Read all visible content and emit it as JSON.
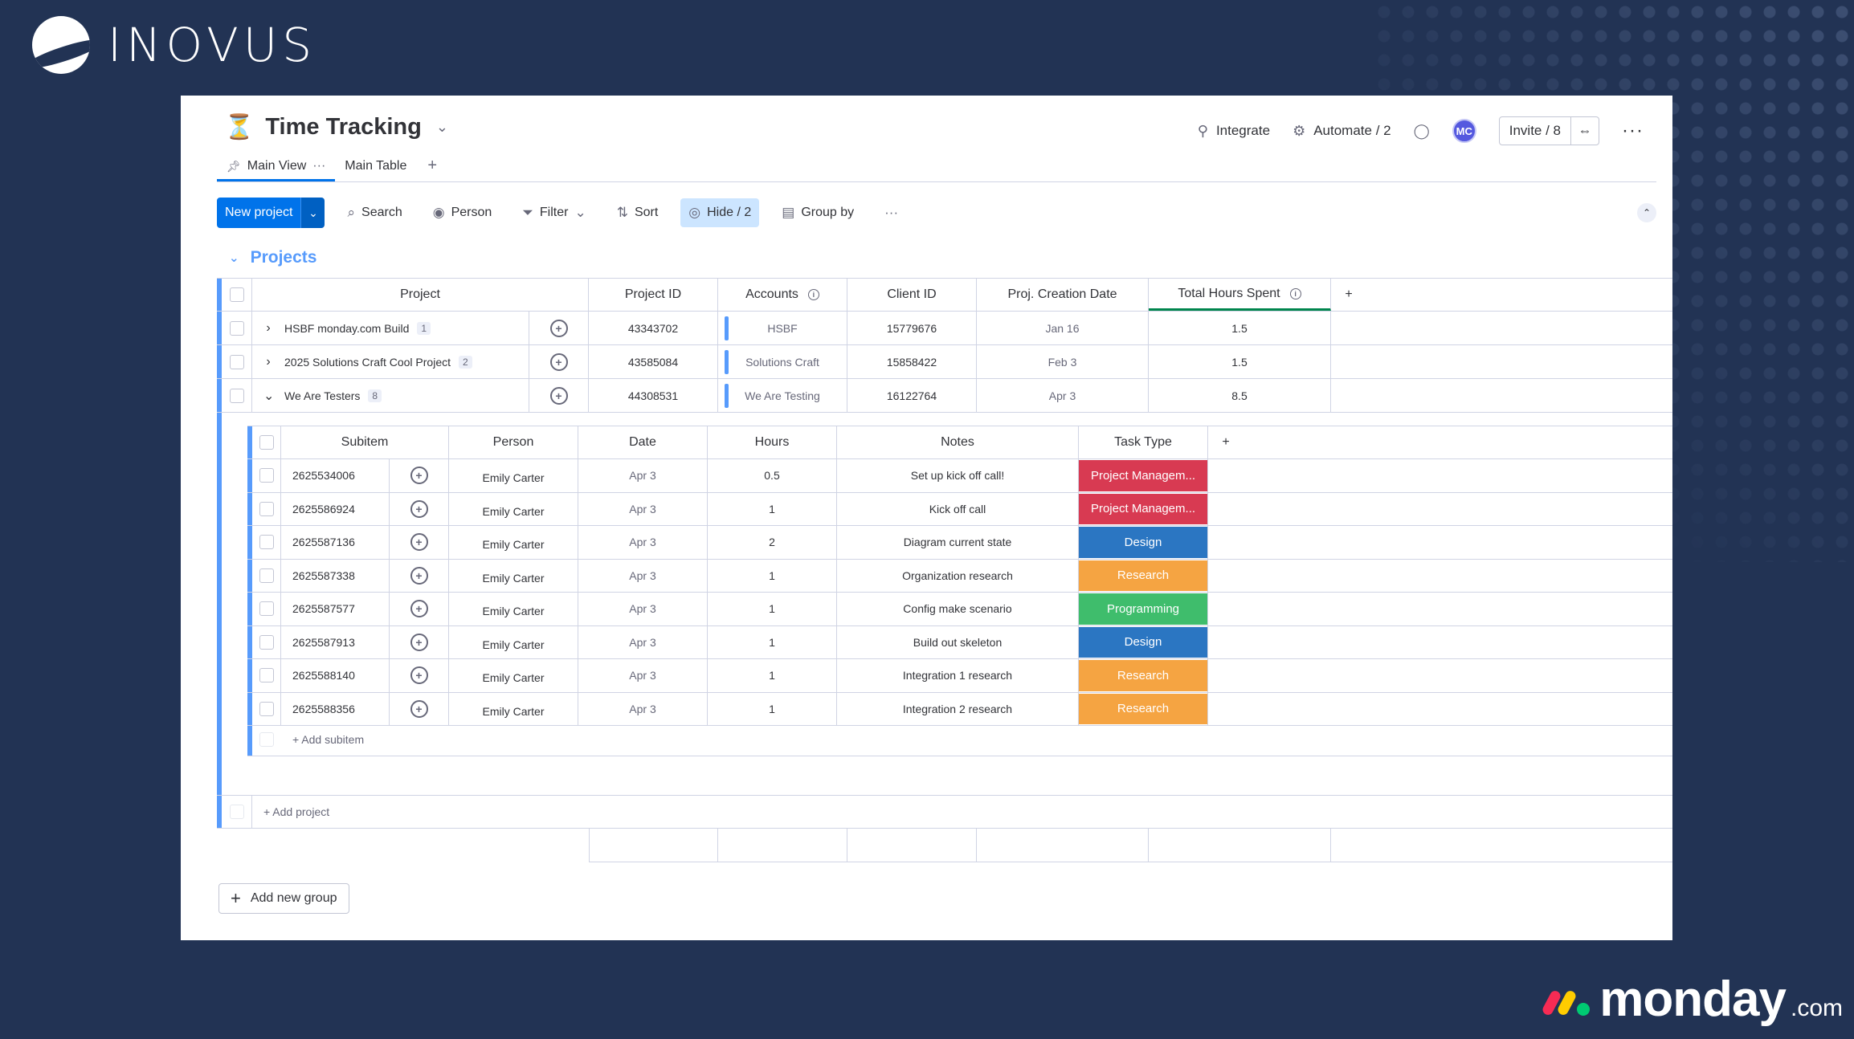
{
  "branding": {
    "company": "INOVUS",
    "platform_word": "monday",
    "platform_suffix": ".com"
  },
  "board": {
    "title": "Time Tracking",
    "tabs": [
      {
        "label": "Main View",
        "active": true
      },
      {
        "label": "Main Table",
        "active": false
      }
    ]
  },
  "header_actions": {
    "integrate": "Integrate",
    "automate": "Automate / 2",
    "avatar_initials": "MC",
    "invite": "Invite / 8"
  },
  "toolbar": {
    "new_project": "New project",
    "search": "Search",
    "person": "Person",
    "filter": "Filter",
    "sort": "Sort",
    "hide": "Hide / 2",
    "group_by": "Group by"
  },
  "group": {
    "title": "Projects",
    "columns": [
      "Project",
      "Project ID",
      "Accounts",
      "Client ID",
      "Proj. Creation Date",
      "Total Hours Spent"
    ],
    "projects": [
      {
        "name": "HSBF monday.com Build",
        "count": "1",
        "expanded": false,
        "project_id": "43343702",
        "account": "HSBF",
        "client_id": "15779676",
        "created": "Jan 16",
        "hours": "1.5"
      },
      {
        "name": "2025 Solutions Craft Cool Project",
        "count": "2",
        "expanded": false,
        "project_id": "43585084",
        "account": "Solutions Craft",
        "client_id": "15858422",
        "created": "Feb 3",
        "hours": "1.5"
      },
      {
        "name": "We Are Testers",
        "count": "8",
        "expanded": true,
        "project_id": "44308531",
        "account": "We Are Testing",
        "client_id": "16122764",
        "created": "Apr 3",
        "hours": "8.5"
      }
    ],
    "add_project": "+ Add project",
    "add_group": "Add new group"
  },
  "subitems": {
    "columns": [
      "Subitem",
      "Person",
      "Date",
      "Hours",
      "Notes",
      "Task Type"
    ],
    "rows": [
      {
        "id": "2625534006",
        "person": "Emily Carter",
        "date": "Apr 3",
        "hours": "0.5",
        "notes": "Set up kick off call!",
        "type": "Project Managem...",
        "type_color": "#d83a52"
      },
      {
        "id": "2625586924",
        "person": "Emily Carter",
        "date": "Apr 3",
        "hours": "1",
        "notes": "Kick off call",
        "type": "Project Managem...",
        "type_color": "#d83a52"
      },
      {
        "id": "2625587136",
        "person": "Emily Carter",
        "date": "Apr 3",
        "hours": "2",
        "notes": "Diagram current state",
        "type": "Design",
        "type_color": "#2b76c2"
      },
      {
        "id": "2625587338",
        "person": "Emily Carter",
        "date": "Apr 3",
        "hours": "1",
        "notes": "Organization research",
        "type": "Research",
        "type_color": "#f5a442"
      },
      {
        "id": "2625587577",
        "person": "Emily Carter",
        "date": "Apr 3",
        "hours": "1",
        "notes": "Config make scenario",
        "type": "Programming",
        "type_color": "#3fbd6c"
      },
      {
        "id": "2625587913",
        "person": "Emily Carter",
        "date": "Apr 3",
        "hours": "1",
        "notes": "Build out skeleton",
        "type": "Design",
        "type_color": "#2b76c2"
      },
      {
        "id": "2625588140",
        "person": "Emily Carter",
        "date": "Apr 3",
        "hours": "1",
        "notes": "Integration 1 research",
        "type": "Research",
        "type_color": "#f5a442"
      },
      {
        "id": "2625588356",
        "person": "Emily Carter",
        "date": "Apr 3",
        "hours": "1",
        "notes": "Integration 2 research",
        "type": "Research",
        "type_color": "#f5a442"
      }
    ],
    "add_subitem": "+ Add subitem"
  }
}
